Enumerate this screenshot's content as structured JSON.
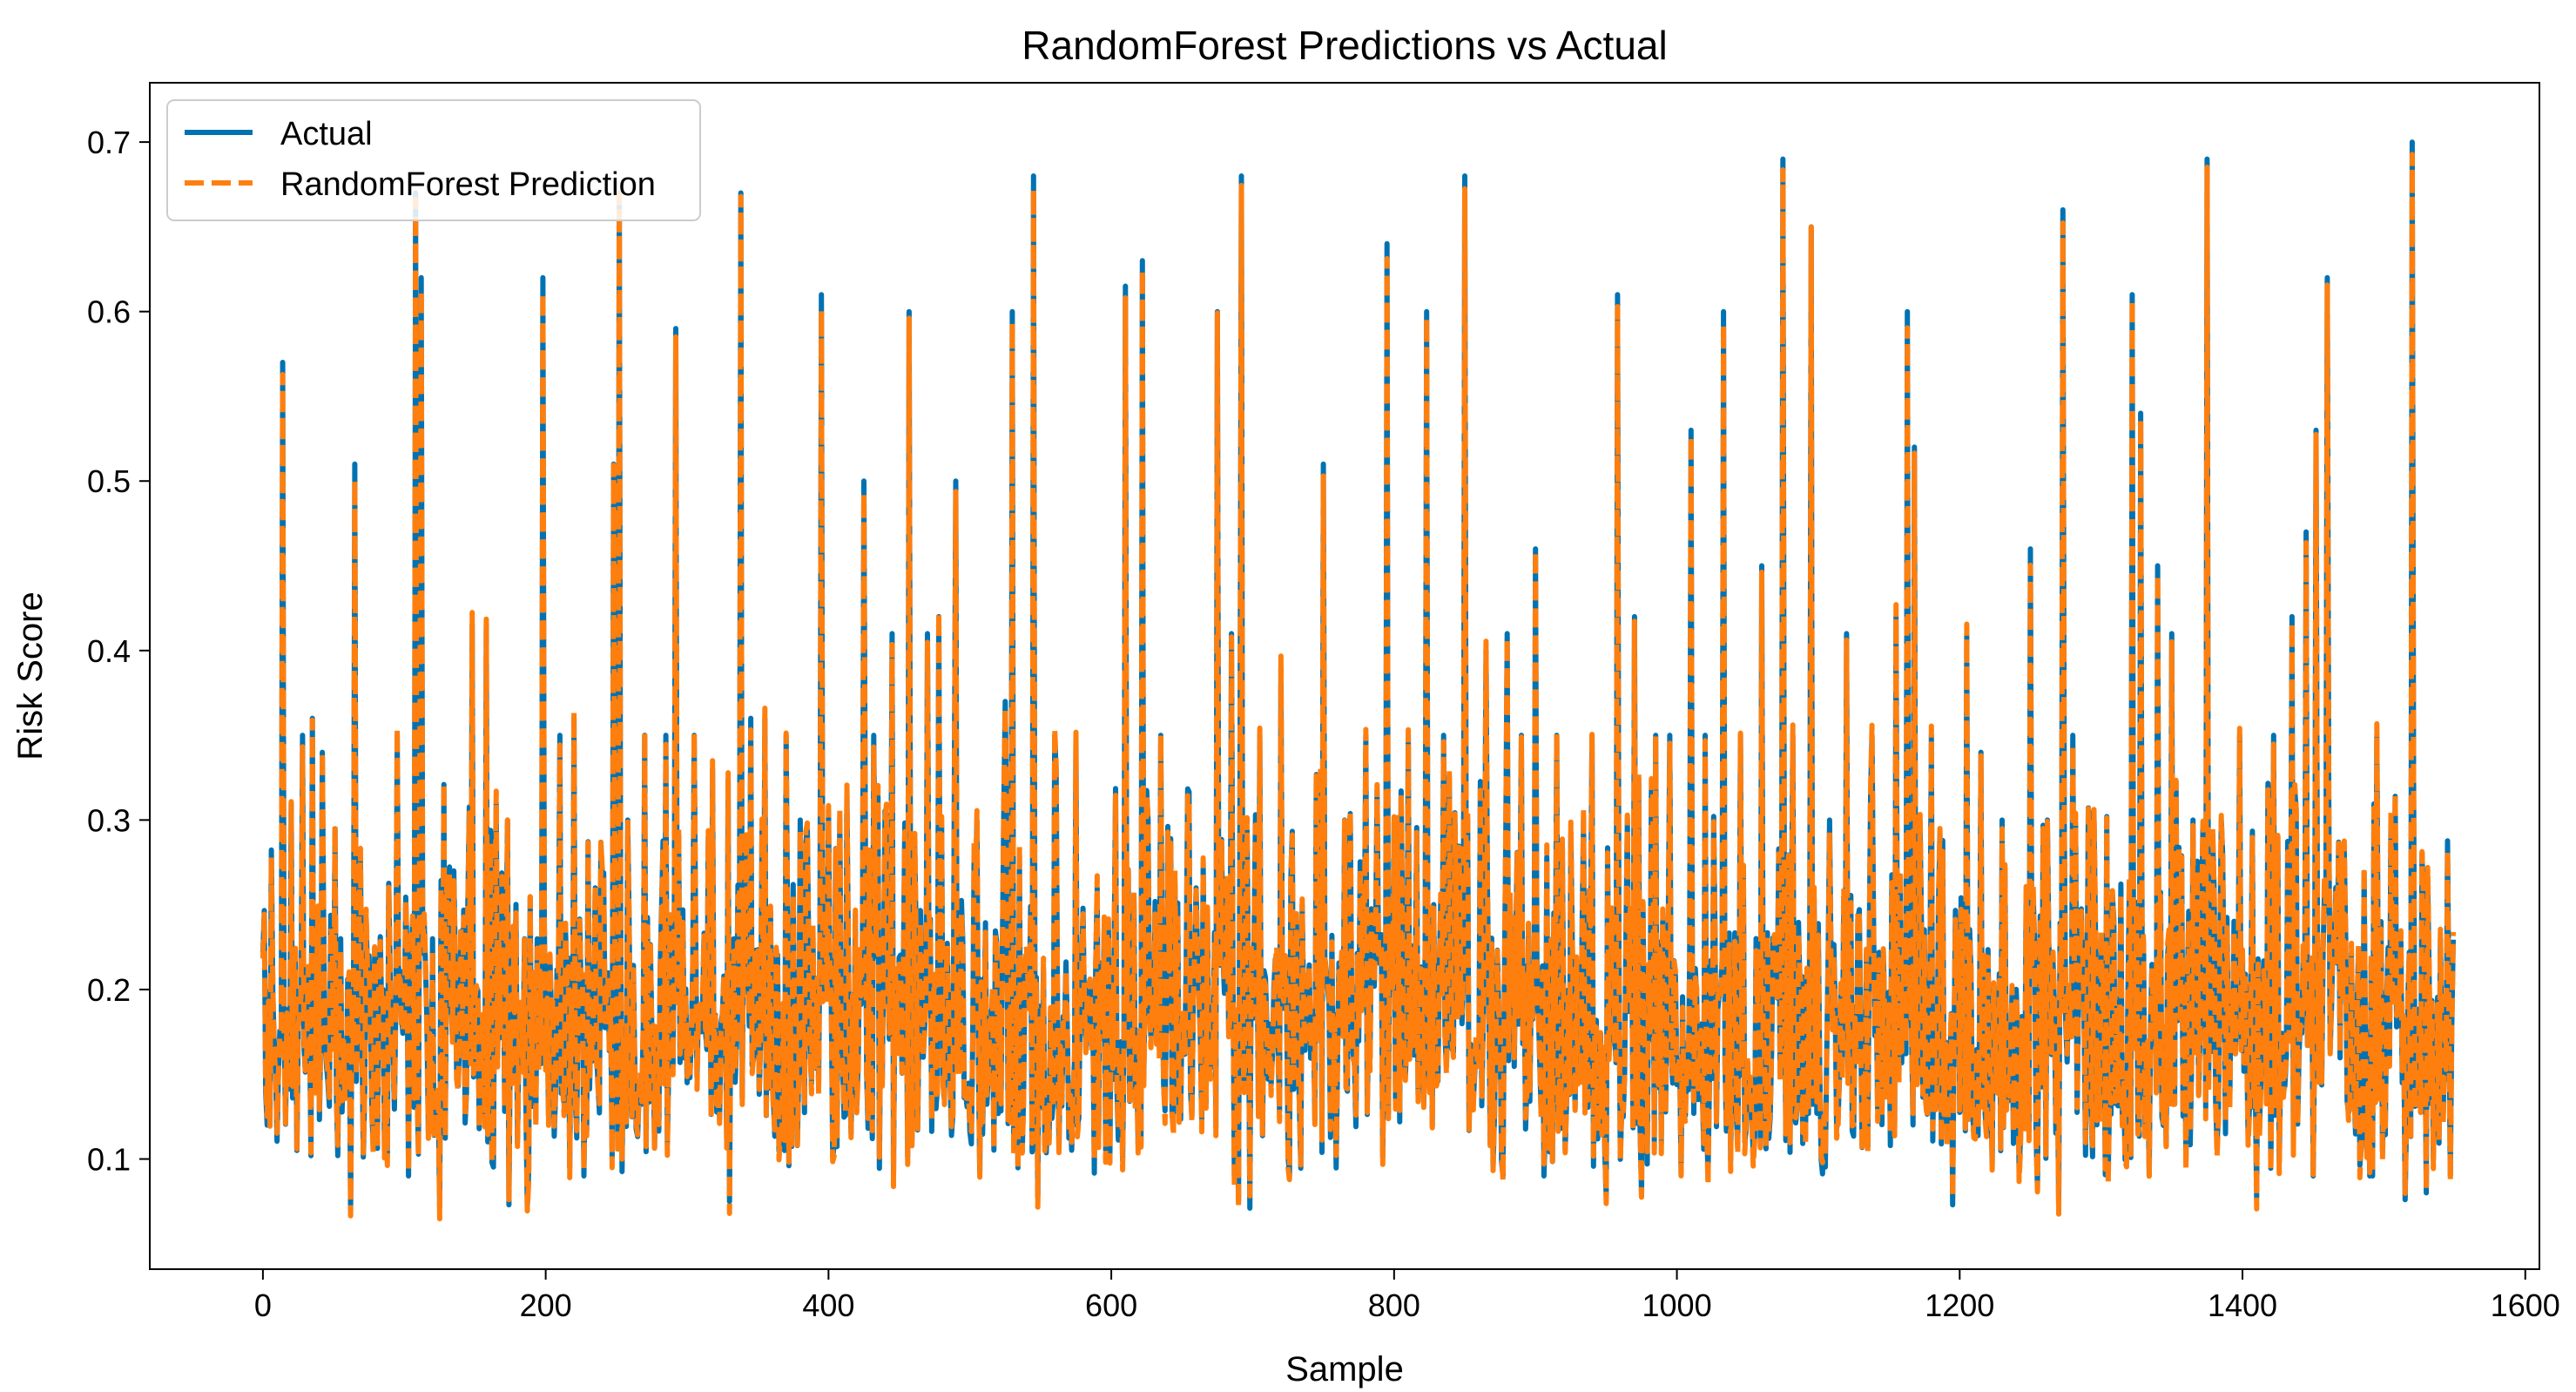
{
  "chart_data": {
    "type": "line",
    "title": "RandomForest Predictions vs Actual",
    "xlabel": "Sample",
    "ylabel": "Risk Score",
    "xlim": [
      -80,
      1610
    ],
    "ylim": [
      0.035,
      0.735
    ],
    "xticks": [
      0,
      200,
      400,
      600,
      800,
      1000,
      1200,
      1400,
      1600
    ],
    "yticks": [
      0.1,
      0.2,
      0.3,
      0.4,
      0.5,
      0.6,
      0.7
    ],
    "grid": false,
    "legend_position": "top-left",
    "series": [
      {
        "name": "Actual",
        "color": "#0072B2",
        "style": "solid"
      },
      {
        "name": "RandomForest Prediction",
        "color": "#FF7F0E",
        "style": "dashed"
      }
    ],
    "n_samples": 1550,
    "baseline_range": [
      0.1,
      0.24
    ],
    "peaks": [
      [
        0,
        0.222
      ],
      [
        3,
        0.12
      ],
      [
        14,
        0.57
      ],
      [
        20,
        0.31
      ],
      [
        28,
        0.35
      ],
      [
        35,
        0.36
      ],
      [
        42,
        0.34
      ],
      [
        55,
        0.23
      ],
      [
        65,
        0.51
      ],
      [
        75,
        0.22
      ],
      [
        85,
        0.2
      ],
      [
        95,
        0.35
      ],
      [
        108,
        0.67
      ],
      [
        112,
        0.62
      ],
      [
        120,
        0.23
      ],
      [
        135,
        0.27
      ],
      [
        148,
        0.415
      ],
      [
        158,
        0.415
      ],
      [
        170,
        0.26
      ],
      [
        185,
        0.23
      ],
      [
        198,
        0.62
      ],
      [
        210,
        0.35
      ],
      [
        220,
        0.36
      ],
      [
        235,
        0.26
      ],
      [
        248,
        0.51
      ],
      [
        252,
        0.67
      ],
      [
        258,
        0.3
      ],
      [
        270,
        0.35
      ],
      [
        285,
        0.35
      ],
      [
        292,
        0.59
      ],
      [
        305,
        0.35
      ],
      [
        318,
        0.33
      ],
      [
        330,
        0.24
      ],
      [
        338,
        0.67
      ],
      [
        345,
        0.36
      ],
      [
        355,
        0.36
      ],
      [
        370,
        0.35
      ],
      [
        380,
        0.3
      ],
      [
        395,
        0.61
      ],
      [
        408,
        0.3
      ],
      [
        425,
        0.5
      ],
      [
        432,
        0.35
      ],
      [
        445,
        0.41
      ],
      [
        457,
        0.6
      ],
      [
        470,
        0.41
      ],
      [
        478,
        0.42
      ],
      [
        490,
        0.5
      ],
      [
        505,
        0.3
      ],
      [
        525,
        0.37
      ],
      [
        530,
        0.6
      ],
      [
        545,
        0.68
      ],
      [
        560,
        0.35
      ],
      [
        575,
        0.35
      ],
      [
        590,
        0.26
      ],
      [
        610,
        0.615
      ],
      [
        622,
        0.63
      ],
      [
        635,
        0.35
      ],
      [
        660,
        0.26
      ],
      [
        675,
        0.6
      ],
      [
        685,
        0.41
      ],
      [
        692,
        0.68
      ],
      [
        705,
        0.35
      ],
      [
        720,
        0.39
      ],
      [
        735,
        0.25
      ],
      [
        750,
        0.51
      ],
      [
        765,
        0.3
      ],
      [
        780,
        0.35
      ],
      [
        795,
        0.64
      ],
      [
        810,
        0.35
      ],
      [
        823,
        0.6
      ],
      [
        835,
        0.35
      ],
      [
        850,
        0.68
      ],
      [
        865,
        0.4
      ],
      [
        880,
        0.41
      ],
      [
        890,
        0.35
      ],
      [
        900,
        0.46
      ],
      [
        915,
        0.35
      ],
      [
        940,
        0.35
      ],
      [
        958,
        0.61
      ],
      [
        970,
        0.42
      ],
      [
        985,
        0.35
      ],
      [
        995,
        0.35
      ],
      [
        1010,
        0.53
      ],
      [
        1020,
        0.35
      ],
      [
        1033,
        0.6
      ],
      [
        1045,
        0.35
      ],
      [
        1060,
        0.45
      ],
      [
        1075,
        0.69
      ],
      [
        1082,
        0.35
      ],
      [
        1095,
        0.65
      ],
      [
        1108,
        0.3
      ],
      [
        1120,
        0.41
      ],
      [
        1138,
        0.35
      ],
      [
        1155,
        0.42
      ],
      [
        1163,
        0.6
      ],
      [
        1168,
        0.52
      ],
      [
        1180,
        0.35
      ],
      [
        1195,
        0.65
      ],
      [
        1205,
        0.41
      ],
      [
        1215,
        0.34
      ],
      [
        1230,
        0.3
      ],
      [
        1250,
        0.46
      ],
      [
        1262,
        0.3
      ],
      [
        1273,
        0.66
      ],
      [
        1280,
        0.35
      ],
      [
        1292,
        0.3
      ],
      [
        1305,
        0.27
      ],
      [
        1322,
        0.61
      ],
      [
        1328,
        0.54
      ],
      [
        1340,
        0.45
      ],
      [
        1350,
        0.41
      ],
      [
        1365,
        0.3
      ],
      [
        1375,
        0.69
      ],
      [
        1385,
        0.3
      ],
      [
        1398,
        0.35
      ],
      [
        1410,
        0.39
      ],
      [
        1422,
        0.35
      ],
      [
        1435,
        0.42
      ],
      [
        1445,
        0.47
      ],
      [
        1452,
        0.53
      ],
      [
        1460,
        0.62
      ],
      [
        1470,
        0.28
      ],
      [
        1482,
        0.22
      ],
      [
        1495,
        0.35
      ],
      [
        1505,
        0.3
      ],
      [
        1515,
        0.68
      ],
      [
        1520,
        0.7
      ],
      [
        1530,
        0.24
      ],
      [
        1540,
        0.23
      ],
      [
        1550,
        0.2
      ]
    ],
    "troughs": [
      [
        62,
        0.07
      ],
      [
        125,
        0.072
      ],
      [
        174,
        0.073
      ],
      [
        187,
        0.072
      ],
      [
        330,
        0.075
      ],
      [
        548,
        0.078
      ],
      [
        690,
        0.075
      ],
      [
        698,
        0.071
      ],
      [
        950,
        0.078
      ],
      [
        975,
        0.078
      ],
      [
        1195,
        0.073
      ],
      [
        1255,
        0.083
      ],
      [
        1270,
        0.074
      ],
      [
        1305,
        0.09
      ],
      [
        1410,
        0.077
      ],
      [
        1490,
        0.09
      ],
      [
        1515,
        0.076
      ],
      [
        1530,
        0.08
      ]
    ]
  }
}
